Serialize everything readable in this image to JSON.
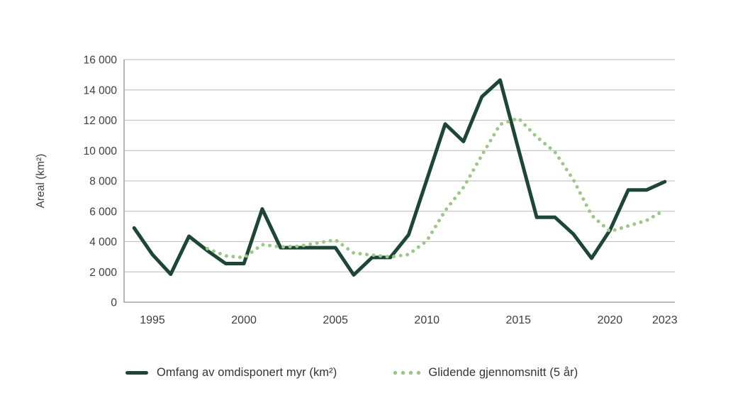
{
  "chart_data": {
    "type": "line",
    "title": "",
    "xlabel": "",
    "ylabel": "Areal (km²)",
    "ylim": [
      0,
      16000
    ],
    "xlim": [
      1993.45,
      2023.55
    ],
    "grid": "horizontal",
    "legend_position": "bottom",
    "colors": {
      "series1": "#1d4734",
      "series2": "#9bc887",
      "gridline": "#c6c6c6",
      "axis": "#8f8f8f",
      "text": "#3d3d3d"
    },
    "yticks": {
      "values": [
        0,
        2000,
        4000,
        6000,
        8000,
        10000,
        12000,
        14000,
        16000
      ],
      "labels": [
        "0",
        "2 000",
        "4 000",
        "6 000",
        "8 000",
        "10 000",
        "12 000",
        "14 000",
        "16 000"
      ]
    },
    "xticks": {
      "values": [
        1995,
        2000,
        2005,
        2010,
        2015,
        2020,
        2023
      ],
      "labels": [
        "1995",
        "2000",
        "2005",
        "2010",
        "2015",
        "2020",
        "2023"
      ]
    },
    "series": [
      {
        "name": "Omfang av omdisponert myr (km²)",
        "style": "solid",
        "color_key": "series1",
        "x": [
          1994,
          1995,
          1996,
          1997,
          1998,
          1999,
          2000,
          2001,
          2002,
          2003,
          2004,
          2005,
          2006,
          2007,
          2008,
          2009,
          2010,
          2011,
          2012,
          2013,
          2014,
          2015,
          2016,
          2017,
          2018,
          2019,
          2020,
          2021,
          2022,
          2023
        ],
        "values": [
          4900,
          3150,
          1850,
          4350,
          3400,
          2550,
          2550,
          6150,
          3600,
          3600,
          3600,
          3600,
          1800,
          2950,
          2950,
          4450,
          8100,
          11750,
          10600,
          13550,
          14650,
          10100,
          5600,
          5600,
          4500,
          2900,
          4750,
          7400,
          7400,
          7950
        ]
      },
      {
        "name": "Glidende gjennomsnitt (5 år)",
        "style": "dotted",
        "color_key": "series2",
        "x": [
          1998,
          1999,
          2000,
          2001,
          2002,
          2003,
          2004,
          2005,
          2006,
          2007,
          2008,
          2009,
          2010,
          2011,
          2012,
          2013,
          2014,
          2015,
          2016,
          2017,
          2018,
          2019,
          2020,
          2021,
          2022,
          2023
        ],
        "values": [
          3530,
          3060,
          2940,
          3800,
          3650,
          3690,
          3900,
          4110,
          3240,
          3110,
          2980,
          3150,
          4050,
          6040,
          7570,
          9690,
          11730,
          12130,
          10900,
          9900,
          8090,
          5740,
          4670,
          5030,
          5390,
          6080
        ]
      }
    ]
  }
}
